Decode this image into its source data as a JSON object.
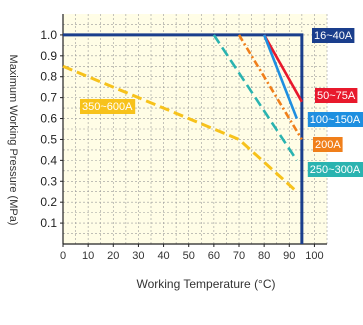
{
  "chart_data": {
    "type": "line",
    "title": "",
    "xlabel": "Working Temperature (°C)",
    "ylabel": "Maximum Working Pressure (MPa)",
    "xlim": [
      0,
      105
    ],
    "ylim": [
      0,
      1.1
    ],
    "x_ticks": [
      "0",
      "10",
      "20",
      "30",
      "40",
      "50",
      "60",
      "70",
      "80",
      "90",
      "100"
    ],
    "y_ticks": [
      "0.1",
      "0.2",
      "0.3",
      "0.4",
      "0.5",
      "0.6",
      "0.7",
      "0.8",
      "0.9",
      "1.0"
    ],
    "grid": true,
    "series": [
      {
        "name": "16~40A",
        "style": "solid",
        "color": "#1a3e8c",
        "points": [
          [
            0,
            1.0
          ],
          [
            95,
            1.0
          ],
          [
            95,
            0.0
          ]
        ]
      },
      {
        "name": "50~75A",
        "style": "solid",
        "color": "#e8192c",
        "points": [
          [
            80,
            1.0
          ],
          [
            95,
            0.68
          ]
        ]
      },
      {
        "name": "100~150A",
        "style": "solid",
        "color": "#1e8fe0",
        "points": [
          [
            80,
            1.0
          ],
          [
            93,
            0.6
          ]
        ]
      },
      {
        "name": "200A",
        "style": "dash-dot",
        "color": "#f07f1a",
        "points": [
          [
            70,
            1.0
          ],
          [
            95,
            0.5
          ]
        ]
      },
      {
        "name": "250~300A",
        "style": "dashed",
        "color": "#2ab3b0",
        "points": [
          [
            60,
            1.0
          ],
          [
            93,
            0.4
          ]
        ]
      },
      {
        "name": "350~600A",
        "style": "dashed",
        "color": "#f7c21b",
        "points": [
          [
            0,
            0.85
          ],
          [
            70,
            0.5
          ],
          [
            93,
            0.25
          ]
        ]
      }
    ]
  }
}
